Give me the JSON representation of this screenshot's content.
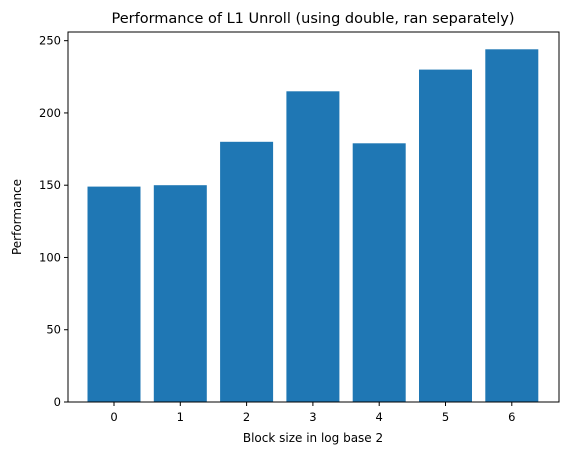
{
  "chart_data": {
    "type": "bar",
    "title": "Performance of L1 Unroll (using double, ran separately)",
    "xlabel": "Block size in log base 2",
    "ylabel": "Performance",
    "categories": [
      "0",
      "1",
      "2",
      "3",
      "4",
      "5",
      "6"
    ],
    "values": [
      149,
      150,
      180,
      215,
      179,
      230,
      244
    ],
    "ylim": [
      0,
      256
    ],
    "yticks": [
      0,
      50,
      100,
      150,
      200,
      250
    ],
    "bar_color": "#1f77b4",
    "grid": false,
    "legend": "none"
  }
}
